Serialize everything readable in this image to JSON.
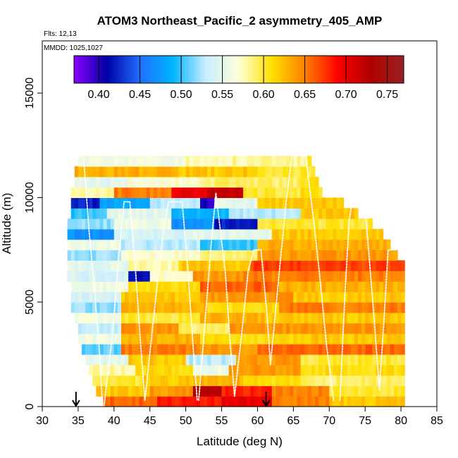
{
  "chart_data": {
    "type": "heatmap",
    "title": "ATOM3 Northeast_Pacific_2 asymmetry_405_AMP",
    "flights_label": "Flts: 12,13",
    "dates_label": "MMDD: 1025,1027",
    "xlabel": "Latitude (deg N)",
    "ylabel": "Altitude (m)",
    "xlim": [
      30,
      85
    ],
    "ylim": [
      0,
      17500
    ],
    "x_ticks": [
      "30",
      "35",
      "40",
      "45",
      "50",
      "55",
      "60",
      "65",
      "70",
      "75",
      "80",
      "85"
    ],
    "y_ticks": [
      "0",
      "5000",
      "10000",
      "15000"
    ],
    "grid": false,
    "colorbar": {
      "range": [
        0.37,
        0.77
      ],
      "ticks": [
        "0.40",
        "0.45",
        "0.50",
        "0.55",
        "0.60",
        "0.65",
        "0.70",
        "0.75"
      ],
      "placement": "top, inside plot",
      "colors": [
        "#8b00ff",
        "#0000a8",
        "#1e6fff",
        "#00b4ff",
        "#c8eeff",
        "#ffffd8",
        "#ffe000",
        "#ff8000",
        "#ff0000",
        "#b00000",
        "#9a2020"
      ]
    },
    "arrows_latitude": [
      34.7,
      61.2
    ],
    "colors": {
      "profile_track": "#ffffff",
      "frame": "#000000"
    },
    "altitude_bin_m": 500,
    "latitude_bin_deg": 0.5,
    "region": {
      "bottom": [
        [
          38.8,
          0
        ],
        [
          36,
          2500
        ],
        [
          34.5,
          4500
        ],
        [
          33.5,
          7500
        ],
        [
          34.3,
          10000
        ],
        [
          35.5,
          12500
        ]
      ],
      "top_edge": [
        [
          35.5,
          12500
        ],
        [
          63,
          12500
        ],
        [
          67,
          12000
        ],
        [
          69,
          10000
        ],
        [
          71,
          10000
        ],
        [
          77,
          8500
        ],
        [
          80,
          7000
        ],
        [
          80.5,
          0
        ]
      ]
    },
    "values": {
      "11750": [
        [
          35,
          50,
          0.56
        ],
        [
          50,
          67,
          0.58
        ],
        [
          67,
          70,
          0.61
        ]
      ],
      "11250": [
        [
          35,
          48,
          0.63
        ],
        [
          48,
          60,
          0.62
        ],
        [
          60,
          69,
          0.6
        ]
      ],
      "10750": [
        [
          35,
          42,
          0.55
        ],
        [
          42,
          52,
          0.57
        ],
        [
          52,
          66,
          0.59
        ],
        [
          66,
          71,
          0.61
        ]
      ],
      "10250": [
        [
          34,
          40,
          0.58
        ],
        [
          40,
          48,
          0.65
        ],
        [
          48,
          53,
          0.7
        ],
        [
          53,
          58,
          0.72
        ],
        [
          58,
          66,
          0.6
        ],
        [
          66,
          74,
          0.61
        ]
      ],
      "9750": [
        [
          34,
          38,
          0.42
        ],
        [
          38,
          45,
          0.48
        ],
        [
          45,
          52,
          0.53
        ],
        [
          52,
          54,
          0.4
        ],
        [
          54,
          60,
          0.55
        ],
        [
          60,
          75,
          0.62
        ]
      ],
      "9250": [
        [
          34,
          39,
          0.5
        ],
        [
          39,
          48,
          0.55
        ],
        [
          48,
          56,
          0.49
        ],
        [
          56,
          66,
          0.53
        ],
        [
          66,
          76,
          0.62
        ]
      ],
      "8750": [
        [
          34,
          40,
          0.52
        ],
        [
          40,
          48,
          0.56
        ],
        [
          48,
          54,
          0.47
        ],
        [
          54,
          60,
          0.42
        ],
        [
          60,
          76,
          0.6
        ]
      ],
      "8250": [
        [
          34,
          40,
          0.47
        ],
        [
          40,
          50,
          0.54
        ],
        [
          50,
          62,
          0.55
        ],
        [
          62,
          77,
          0.62
        ]
      ],
      "7750": [
        [
          34,
          41,
          0.56
        ],
        [
          41,
          52,
          0.53
        ],
        [
          52,
          60,
          0.5
        ],
        [
          60,
          78,
          0.63
        ]
      ],
      "7250": [
        [
          34,
          41,
          0.52
        ],
        [
          41,
          52,
          0.57
        ],
        [
          52,
          60,
          0.59
        ],
        [
          60,
          80,
          0.64
        ]
      ],
      "6750": [
        [
          34,
          42,
          0.55
        ],
        [
          42,
          49,
          0.58
        ],
        [
          49,
          59,
          0.62
        ],
        [
          59,
          80,
          0.67
        ]
      ],
      "6250": [
        [
          34,
          42,
          0.54
        ],
        [
          42,
          45,
          0.42
        ],
        [
          45,
          51,
          0.57
        ],
        [
          51,
          58,
          0.64
        ],
        [
          58,
          80,
          0.65
        ]
      ],
      "5750": [
        [
          34,
          42,
          0.56
        ],
        [
          42,
          52,
          0.61
        ],
        [
          52,
          63,
          0.66
        ],
        [
          63,
          80,
          0.63
        ]
      ],
      "5250": [
        [
          34,
          41,
          0.54
        ],
        [
          41,
          52,
          0.62
        ],
        [
          52,
          65,
          0.64
        ],
        [
          65,
          80,
          0.62
        ]
      ],
      "4750": [
        [
          34,
          41,
          0.52
        ],
        [
          41,
          53,
          0.63
        ],
        [
          53,
          63,
          0.61
        ],
        [
          63,
          80,
          0.65
        ]
      ],
      "4250": [
        [
          34,
          41,
          0.56
        ],
        [
          41,
          52,
          0.6
        ],
        [
          52,
          61,
          0.63
        ],
        [
          61,
          80,
          0.62
        ]
      ],
      "3750": [
        [
          35,
          41,
          0.53
        ],
        [
          41,
          49,
          0.64
        ],
        [
          49,
          56,
          0.59
        ],
        [
          56,
          80,
          0.64
        ]
      ],
      "3250": [
        [
          35,
          41,
          0.56
        ],
        [
          41,
          52,
          0.63
        ],
        [
          52,
          65,
          0.61
        ],
        [
          65,
          80,
          0.62
        ]
      ],
      "2750": [
        [
          36,
          41,
          0.51
        ],
        [
          41,
          52,
          0.65
        ],
        [
          52,
          60,
          0.64
        ],
        [
          60,
          80,
          0.66
        ]
      ],
      "2250": [
        [
          36,
          42,
          0.55
        ],
        [
          42,
          50,
          0.62
        ],
        [
          50,
          57,
          0.53
        ],
        [
          57,
          66,
          0.64
        ],
        [
          66,
          80,
          0.6
        ]
      ],
      "1750": [
        [
          37,
          43,
          0.58
        ],
        [
          43,
          51,
          0.61
        ],
        [
          51,
          56,
          0.56
        ],
        [
          56,
          66,
          0.64
        ],
        [
          66,
          80,
          0.61
        ]
      ],
      "1250": [
        [
          37,
          44,
          0.6
        ],
        [
          44,
          52,
          0.62
        ],
        [
          52,
          58,
          0.63
        ],
        [
          58,
          66,
          0.61
        ],
        [
          66,
          80,
          0.59
        ]
      ],
      "750": [
        [
          37.5,
          45,
          0.62
        ],
        [
          45,
          51,
          0.64
        ],
        [
          51,
          55,
          0.73
        ],
        [
          55,
          62,
          0.68
        ],
        [
          62,
          70,
          0.65
        ],
        [
          70,
          80,
          0.6
        ]
      ],
      "250": [
        [
          38,
          46,
          0.66
        ],
        [
          46,
          55,
          0.68
        ],
        [
          55,
          62,
          0.7
        ],
        [
          62,
          70,
          0.65
        ],
        [
          70,
          76,
          0.62
        ]
      ]
    },
    "profiles": [
      [
        [
          35.7,
          12200
        ],
        [
          36.5,
          8500
        ],
        [
          37.3,
          5500
        ],
        [
          38,
          2500
        ],
        [
          38.4,
          0
        ]
      ],
      [
        [
          38.6,
          0
        ],
        [
          39.8,
          3500
        ],
        [
          40.6,
          7000
        ],
        [
          41.4,
          9800
        ],
        [
          42.2,
          9800
        ]
      ],
      [
        [
          42.2,
          9800
        ],
        [
          43.0,
          6500
        ],
        [
          43.7,
          3000
        ],
        [
          44.3,
          300
        ]
      ],
      [
        [
          44.3,
          300
        ],
        [
          45.6,
          4500
        ],
        [
          46.8,
          8200
        ],
        [
          47.6,
          9800
        ],
        [
          49.5,
          9800
        ]
      ],
      [
        [
          49.5,
          9800
        ],
        [
          50.3,
          6500
        ],
        [
          51.0,
          3000
        ],
        [
          51.6,
          300
        ]
      ],
      [
        [
          51.8,
          300
        ],
        [
          52.8,
          4500
        ],
        [
          53.6,
          8000
        ],
        [
          54.2,
          10200
        ]
      ],
      [
        [
          54.2,
          10200
        ],
        [
          55.5,
          6500
        ],
        [
          56.2,
          3000
        ],
        [
          56.8,
          500
        ]
      ],
      [
        [
          56.8,
          500
        ],
        [
          57.8,
          3500
        ],
        [
          58.7,
          6500
        ],
        [
          59.5,
          7500
        ],
        [
          60.5,
          7500
        ]
      ],
      [
        [
          60.5,
          7500
        ],
        [
          61.3,
          4500
        ],
        [
          61.8,
          2000
        ]
      ],
      [
        [
          61.8,
          2000
        ],
        [
          63.2,
          7000
        ],
        [
          64.0,
          9800
        ],
        [
          64.8,
          12000
        ],
        [
          66.7,
          12000
        ]
      ],
      [
        [
          66.7,
          12000
        ],
        [
          67.8,
          9000
        ],
        [
          68.6,
          6500
        ],
        [
          69.6,
          3000
        ],
        [
          70.6,
          300
        ]
      ],
      [
        [
          71.5,
          300
        ],
        [
          72.2,
          5500
        ],
        [
          72.8,
          9000
        ],
        [
          73.5,
          10300
        ],
        [
          74.8,
          10300
        ]
      ],
      [
        [
          74.8,
          10300
        ],
        [
          75.6,
          7000
        ],
        [
          76.3,
          4000
        ],
        [
          77.0,
          800
        ]
      ],
      [
        [
          77.0,
          800
        ],
        [
          77.6,
          4000
        ],
        [
          78.2,
          7500
        ],
        [
          79.4,
          7500
        ]
      ]
    ]
  }
}
